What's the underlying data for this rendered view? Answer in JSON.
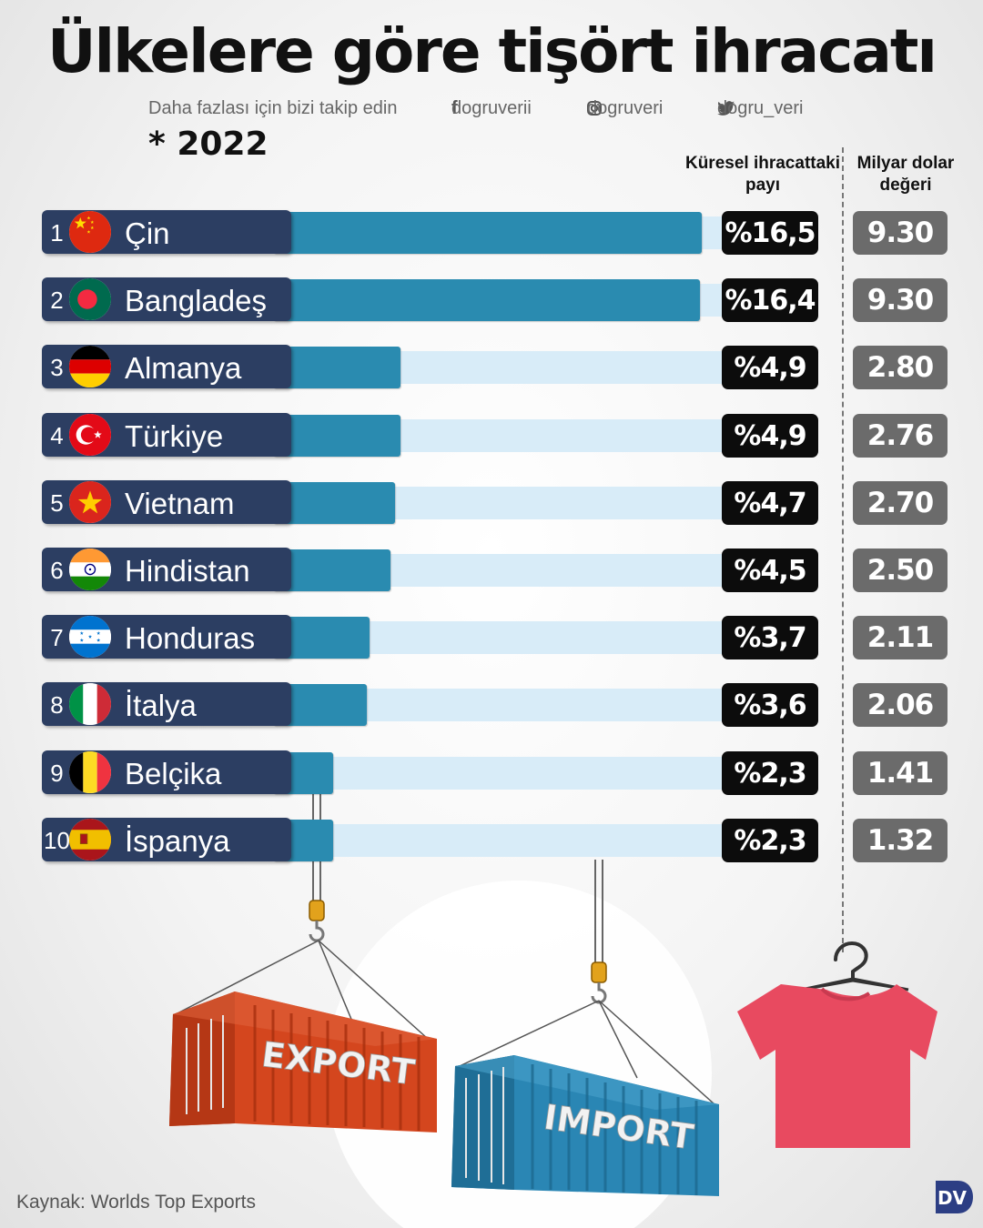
{
  "title": "Ülkelere göre tişört ihracatı",
  "social": {
    "follow_text": "Daha fazlası için bizi takip edin",
    "facebook": "dogruverii",
    "instagram": "dogruveri",
    "twitter": "dogru_veri"
  },
  "year_note": "* 2022",
  "columns": {
    "share_header": "Küresel ihracattaki payı",
    "value_header": "Milyar dolar değeri"
  },
  "chart_data": {
    "type": "bar",
    "orientation": "horizontal",
    "title": "Ülkelere göre tişört ihracatı",
    "categories": [
      "Çin",
      "Bangladeş",
      "Almanya",
      "Türkiye",
      "Vietnam",
      "Hindistan",
      "Honduras",
      "İtalya",
      "Belçika",
      "İspanya"
    ],
    "ranks": [
      "1",
      "2",
      "3",
      "4",
      "5",
      "6",
      "7",
      "8",
      "9",
      "10"
    ],
    "share_labels": [
      "%16,5",
      "%16,4",
      "%4,9",
      "%4,9",
      "%4,7",
      "%4,5",
      "%3,7",
      "%3,6",
      "%2,3",
      "%2,3"
    ],
    "value_labels": [
      "9.30",
      "9.30",
      "2.80",
      "2.76",
      "2.70",
      "2.50",
      "2.11",
      "2.06",
      "1.41",
      "1.32"
    ],
    "series": [
      {
        "values": [
          16.5,
          16.4,
          4.9,
          4.9,
          4.7,
          4.5,
          3.7,
          3.6,
          2.3,
          2.3
        ]
      }
    ],
    "xlim": [
      0,
      17.5
    ],
    "grid": false,
    "colors": {
      "bar": "#2a8bb0",
      "track": "#d8ecf8",
      "label_bg": "#2c3e62",
      "share_bg": "#0c0c0c",
      "value_bg": "#6b6b6b"
    }
  },
  "flags": [
    "cn",
    "bd",
    "de",
    "tr",
    "vn",
    "in",
    "hn",
    "it",
    "be",
    "es"
  ],
  "illustration": {
    "export_label": "EXPORT",
    "import_label": "IMPORT",
    "export_color": "#d4461e",
    "import_color": "#2a86b4",
    "shirt_color": "#e84a60"
  },
  "source": "Kaynak: Worlds Top Exports",
  "logo_text": "DV"
}
